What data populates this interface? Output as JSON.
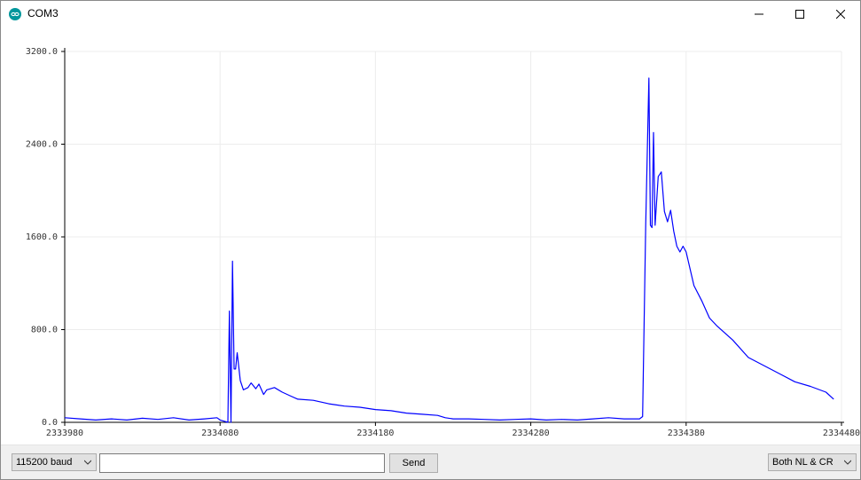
{
  "window": {
    "title": "COM3",
    "icon": "arduino-logo-icon",
    "controls": {
      "minimize": "minimize-icon",
      "maximize": "maximize-icon",
      "close": "close-icon"
    }
  },
  "chart_data": {
    "type": "line",
    "title": "",
    "xlabel": "",
    "ylabel": "",
    "grid": true,
    "xlim": [
      2333980,
      2334480
    ],
    "ylim": [
      0,
      3200
    ],
    "xticks": [
      2333980,
      2334080,
      2334180,
      2334280,
      2334380,
      2334480
    ],
    "xtick_labels": [
      "2333980",
      "2334080",
      "2334180",
      "2334280",
      "2334380",
      "2334480"
    ],
    "yticks": [
      0,
      800,
      1600,
      2400,
      3200
    ],
    "ytick_labels": [
      "0.0",
      "800.0",
      "1600.0",
      "2400.0",
      "3200.0"
    ],
    "series": [
      {
        "color": "#0000ff",
        "x": [
          2333980,
          2333990,
          2334000,
          2334010,
          2334020,
          2334030,
          2334040,
          2334050,
          2334060,
          2334070,
          2334078,
          2334080,
          2334085,
          2334086,
          2334087,
          2334088,
          2334089,
          2334090,
          2334091,
          2334093,
          2334095,
          2334098,
          2334100,
          2334103,
          2334105,
          2334108,
          2334110,
          2334115,
          2334120,
          2334125,
          2334130,
          2334140,
          2334150,
          2334160,
          2334170,
          2334180,
          2334190,
          2334200,
          2334210,
          2334220,
          2334225,
          2334230,
          2334240,
          2334250,
          2334260,
          2334270,
          2334280,
          2334290,
          2334300,
          2334310,
          2334320,
          2334330,
          2334340,
          2334350,
          2334352,
          2334354,
          2334356,
          2334357,
          2334358,
          2334359,
          2334360,
          2334362,
          2334364,
          2334366,
          2334368,
          2334370,
          2334372,
          2334374,
          2334376,
          2334378,
          2334380,
          2334385,
          2334390,
          2334395,
          2334400,
          2334410,
          2334420,
          2334430,
          2334440,
          2334450,
          2334460,
          2334470,
          2334475
        ],
        "y": [
          40,
          30,
          20,
          30,
          20,
          35,
          25,
          40,
          20,
          30,
          40,
          20,
          0,
          960,
          0,
          1390,
          460,
          460,
          600,
          360,
          280,
          300,
          340,
          290,
          330,
          240,
          280,
          300,
          260,
          230,
          200,
          190,
          160,
          140,
          130,
          110,
          100,
          80,
          70,
          60,
          40,
          30,
          30,
          25,
          20,
          25,
          30,
          20,
          25,
          20,
          30,
          40,
          30,
          30,
          50,
          1700,
          2970,
          1700,
          1680,
          2500,
          1700,
          2120,
          2160,
          1820,
          1730,
          1830,
          1650,
          1520,
          1470,
          1520,
          1470,
          1180,
          1050,
          900,
          830,
          710,
          560,
          490,
          420,
          350,
          310,
          260,
          200
        ]
      }
    ]
  },
  "bottom_bar": {
    "baud_rate": "115200 baud",
    "message_value": "",
    "message_placeholder": "",
    "send_label": "Send",
    "line_ending": "Both NL & CR",
    "dropdown_icon": "chevron-down-icon"
  }
}
